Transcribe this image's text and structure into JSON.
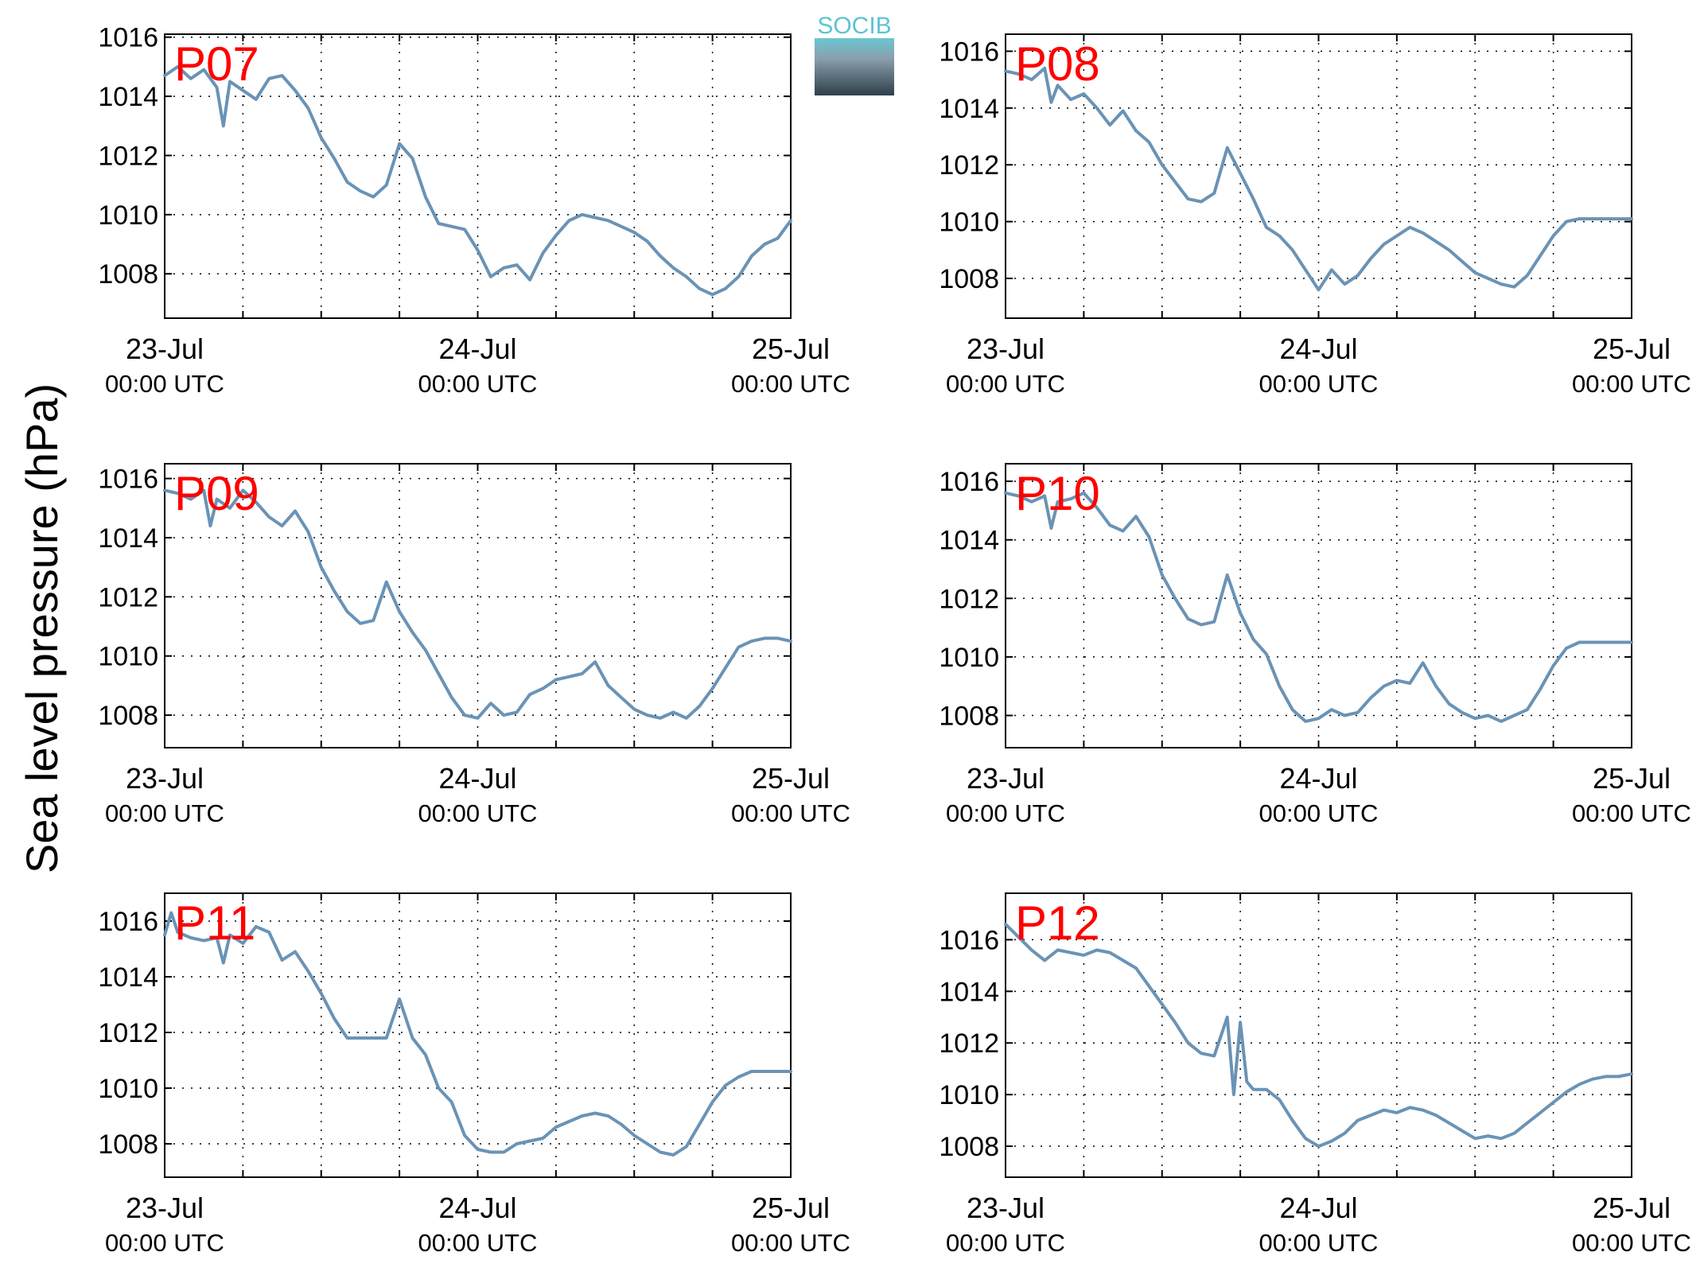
{
  "figure": {
    "ylabel": "Sea level pressure (hPa)",
    "logo_text": "SOCIB",
    "line_color": "#6a93b5",
    "panel_label_color": "#ff0000",
    "x_tick_labels": [
      {
        "date": "23-Jul",
        "time": "00:00 UTC"
      },
      {
        "date": "24-Jul",
        "time": "00:00 UTC"
      },
      {
        "date": "25-Jul",
        "time": "00:00 UTC"
      }
    ]
  },
  "chart_data": [
    {
      "type": "line",
      "label": "P07",
      "xlim": [
        0,
        48
      ],
      "ylim": [
        1006.5,
        1016.1
      ],
      "yticks": [
        "1008",
        "1010",
        "1012",
        "1014",
        "1016"
      ],
      "grid": true,
      "x": [
        0,
        1,
        2,
        3,
        4,
        4.5,
        5,
        6,
        7,
        8,
        9,
        10,
        11,
        12,
        13,
        14,
        15,
        15.5,
        16,
        17,
        18,
        19,
        20,
        21,
        22,
        23,
        24,
        25,
        26,
        27,
        28,
        29,
        30,
        31,
        32,
        33,
        34,
        35,
        36,
        37,
        38,
        39,
        40,
        41,
        42,
        43,
        44,
        45,
        46,
        47,
        48
      ],
      "values": [
        1014.7,
        1015.0,
        1014.6,
        1014.9,
        1014.3,
        1013.0,
        1014.5,
        1014.2,
        1013.9,
        1014.6,
        1014.7,
        1014.2,
        1013.6,
        1012.6,
        1011.9,
        1011.1,
        1010.8,
        1010.7,
        1010.6,
        1011.0,
        1012.4,
        1011.9,
        1010.6,
        1009.7,
        1009.6,
        1009.5,
        1008.8,
        1007.9,
        1008.2,
        1008.3,
        1007.8,
        1008.7,
        1009.3,
        1009.8,
        1010.0,
        1009.9,
        1009.8,
        1009.6,
        1009.4,
        1009.1,
        1008.6,
        1008.2,
        1007.9,
        1007.5,
        1007.3,
        1007.5,
        1007.9,
        1008.6,
        1009.0,
        1009.2,
        1009.8
      ]
    },
    {
      "type": "line",
      "label": "P08",
      "xlim": [
        0,
        48
      ],
      "ylim": [
        1006.6,
        1016.6
      ],
      "yticks": [
        "1008",
        "1010",
        "1012",
        "1014",
        "1016"
      ],
      "grid": true,
      "x": [
        0,
        1,
        2,
        3,
        3.5,
        4,
        5,
        6,
        7,
        8,
        9,
        10,
        11,
        12,
        13,
        14,
        15,
        16,
        17,
        18,
        19,
        20,
        21,
        22,
        23,
        24,
        25,
        26,
        27,
        28,
        29,
        30,
        31,
        32,
        33,
        34,
        35,
        36,
        37,
        38,
        39,
        40,
        41,
        42,
        43,
        44,
        45,
        46,
        47,
        48
      ],
      "values": [
        1015.3,
        1015.2,
        1015.0,
        1015.4,
        1014.2,
        1014.8,
        1014.3,
        1014.5,
        1014.0,
        1013.4,
        1013.9,
        1013.2,
        1012.8,
        1012.0,
        1011.4,
        1010.8,
        1010.7,
        1011.0,
        1012.6,
        1011.7,
        1010.8,
        1009.8,
        1009.5,
        1009.0,
        1008.3,
        1007.6,
        1008.3,
        1007.8,
        1008.1,
        1008.7,
        1009.2,
        1009.5,
        1009.8,
        1009.6,
        1009.3,
        1009.0,
        1008.6,
        1008.2,
        1008.0,
        1007.8,
        1007.7,
        1008.1,
        1008.8,
        1009.5,
        1010.0,
        1010.1,
        1010.1,
        1010.1,
        1010.1,
        1010.1
      ]
    },
    {
      "type": "line",
      "label": "P09",
      "xlim": [
        0,
        48
      ],
      "ylim": [
        1006.9,
        1016.5
      ],
      "yticks": [
        "1008",
        "1010",
        "1012",
        "1014",
        "1016"
      ],
      "grid": true,
      "x": [
        0,
        1,
        2,
        3,
        3.5,
        4,
        5,
        6,
        7,
        8,
        9,
        10,
        11,
        12,
        13,
        14,
        15,
        16,
        17,
        18,
        19,
        20,
        21,
        22,
        23,
        24,
        25,
        26,
        27,
        28,
        29,
        30,
        31,
        32,
        33,
        34,
        35,
        36,
        37,
        38,
        39,
        40,
        41,
        42,
        43,
        44,
        45,
        46,
        47,
        48
      ],
      "values": [
        1015.6,
        1015.5,
        1015.3,
        1015.6,
        1014.4,
        1015.3,
        1015.0,
        1015.6,
        1015.2,
        1014.7,
        1014.4,
        1014.9,
        1014.2,
        1013.0,
        1012.2,
        1011.5,
        1011.1,
        1011.2,
        1012.5,
        1011.5,
        1010.8,
        1010.2,
        1009.4,
        1008.6,
        1008.0,
        1007.9,
        1008.4,
        1008.0,
        1008.1,
        1008.7,
        1008.9,
        1009.2,
        1009.3,
        1009.4,
        1009.8,
        1009.0,
        1008.6,
        1008.2,
        1008.0,
        1007.9,
        1008.1,
        1007.9,
        1008.3,
        1008.9,
        1009.6,
        1010.3,
        1010.5,
        1010.6,
        1010.6,
        1010.5
      ]
    },
    {
      "type": "line",
      "label": "P10",
      "xlim": [
        0,
        48
      ],
      "ylim": [
        1006.9,
        1016.6
      ],
      "yticks": [
        "1008",
        "1010",
        "1012",
        "1014",
        "1016"
      ],
      "grid": true,
      "x": [
        0,
        1,
        2,
        3,
        3.5,
        4,
        5,
        6,
        7,
        8,
        9,
        10,
        11,
        12,
        13,
        14,
        15,
        16,
        17,
        18,
        19,
        20,
        21,
        22,
        23,
        24,
        25,
        26,
        27,
        28,
        29,
        30,
        31,
        32,
        33,
        34,
        35,
        36,
        37,
        38,
        39,
        40,
        41,
        42,
        43,
        44,
        45,
        46,
        47,
        48
      ],
      "values": [
        1015.6,
        1015.5,
        1015.3,
        1015.5,
        1014.4,
        1015.3,
        1015.4,
        1015.6,
        1015.1,
        1014.5,
        1014.3,
        1014.8,
        1014.1,
        1012.8,
        1012.0,
        1011.3,
        1011.1,
        1011.2,
        1012.8,
        1011.5,
        1010.6,
        1010.1,
        1009.0,
        1008.2,
        1007.8,
        1007.9,
        1008.2,
        1008.0,
        1008.1,
        1008.6,
        1009.0,
        1009.2,
        1009.1,
        1009.8,
        1009.0,
        1008.4,
        1008.1,
        1007.9,
        1008.0,
        1007.8,
        1008.0,
        1008.2,
        1008.9,
        1009.7,
        1010.3,
        1010.5,
        1010.5,
        1010.5,
        1010.5,
        1010.5
      ]
    },
    {
      "type": "line",
      "label": "P11",
      "xlim": [
        0,
        48
      ],
      "ylim": [
        1006.8,
        1017.0
      ],
      "yticks": [
        "1008",
        "1010",
        "1012",
        "1014",
        "1016"
      ],
      "grid": true,
      "x": [
        0,
        0.5,
        1,
        2,
        3,
        4,
        4.5,
        5,
        6,
        7,
        8,
        9,
        10,
        11,
        12,
        13,
        14,
        15,
        16,
        17,
        18,
        19,
        20,
        21,
        22,
        23,
        24,
        25,
        26,
        27,
        28,
        29,
        30,
        31,
        32,
        33,
        34,
        35,
        36,
        37,
        38,
        39,
        40,
        41,
        42,
        43,
        44,
        45,
        46,
        47,
        48
      ],
      "values": [
        1015.5,
        1016.3,
        1015.6,
        1015.4,
        1015.3,
        1015.4,
        1014.5,
        1015.5,
        1015.2,
        1015.8,
        1015.6,
        1014.6,
        1014.9,
        1014.2,
        1013.4,
        1012.5,
        1011.8,
        1011.8,
        1011.8,
        1011.8,
        1013.2,
        1011.8,
        1011.2,
        1010.0,
        1009.5,
        1008.3,
        1007.8,
        1007.7,
        1007.7,
        1008.0,
        1008.1,
        1008.2,
        1008.6,
        1008.8,
        1009.0,
        1009.1,
        1009.0,
        1008.7,
        1008.3,
        1008.0,
        1007.7,
        1007.6,
        1007.9,
        1008.7,
        1009.5,
        1010.1,
        1010.4,
        1010.6,
        1010.6,
        1010.6,
        1010.6
      ]
    },
    {
      "type": "line",
      "label": "P12",
      "xlim": [
        0,
        48
      ],
      "ylim": [
        1006.8,
        1017.8
      ],
      "yticks": [
        "1008",
        "1010",
        "1012",
        "1014",
        "1016"
      ],
      "grid": true,
      "x": [
        0,
        1,
        2,
        3,
        4,
        5,
        6,
        7,
        8,
        9,
        10,
        11,
        12,
        13,
        14,
        15,
        16,
        17,
        17.5,
        18,
        18.5,
        19,
        20,
        21,
        22,
        23,
        24,
        25,
        26,
        27,
        28,
        29,
        30,
        31,
        32,
        33,
        34,
        35,
        36,
        37,
        38,
        39,
        40,
        41,
        42,
        43,
        44,
        45,
        46,
        47,
        48
      ],
      "values": [
        1016.6,
        1016.1,
        1015.6,
        1015.2,
        1015.6,
        1015.5,
        1015.4,
        1015.6,
        1015.5,
        1015.2,
        1014.9,
        1014.2,
        1013.5,
        1012.8,
        1012.0,
        1011.6,
        1011.5,
        1013.0,
        1010.0,
        1012.8,
        1010.5,
        1010.2,
        1010.2,
        1009.8,
        1009.0,
        1008.3,
        1008.0,
        1008.2,
        1008.5,
        1009.0,
        1009.2,
        1009.4,
        1009.3,
        1009.5,
        1009.4,
        1009.2,
        1008.9,
        1008.6,
        1008.3,
        1008.4,
        1008.3,
        1008.5,
        1008.9,
        1009.3,
        1009.7,
        1010.1,
        1010.4,
        1010.6,
        1010.7,
        1010.7,
        1010.8
      ]
    }
  ]
}
